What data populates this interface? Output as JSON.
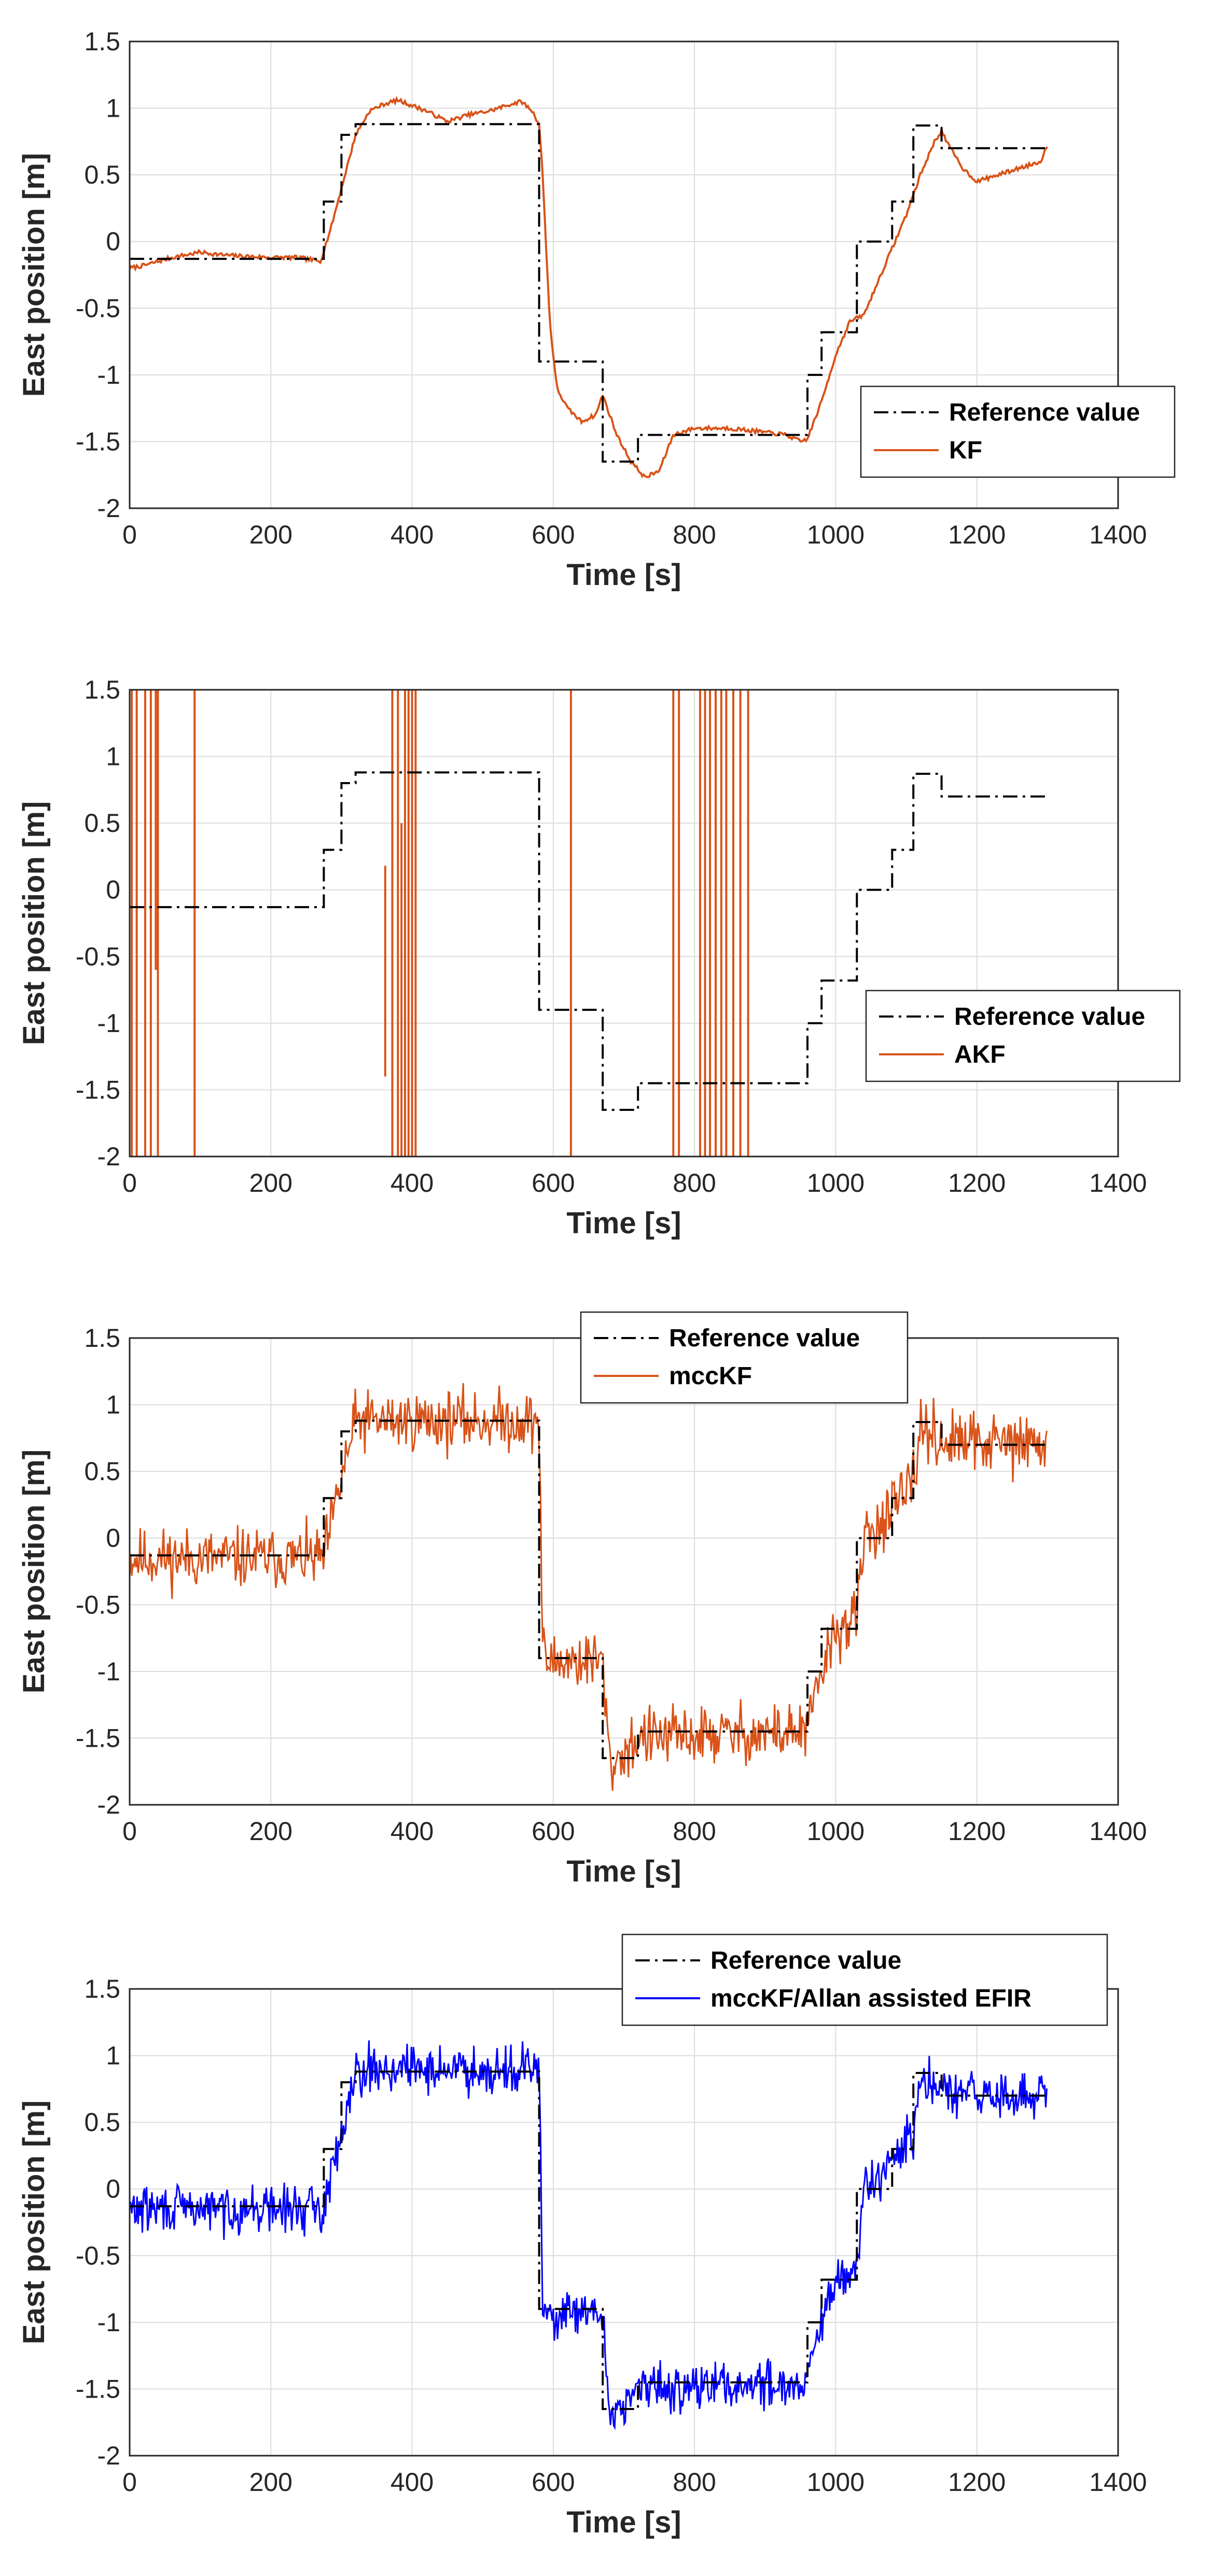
{
  "chart_data": [
    {
      "type": "line",
      "xlabel": "Time [s]",
      "ylabel": "East position [m]",
      "xlim": [
        0,
        1400
      ],
      "ylim": [
        -2,
        1.5
      ],
      "xticks": [
        "0",
        "200",
        "400",
        "600",
        "800",
        "1000",
        "1200",
        "1400"
      ],
      "yticks": [
        "-2",
        "-1.5",
        "-1",
        "-0.5",
        "0",
        "0.5",
        "1",
        "1.5"
      ],
      "grid": true,
      "legend_position": "lower-right",
      "reference": {
        "name": "Reference value",
        "color": "#000000",
        "x": [
          0,
          275,
          275,
          300,
          300,
          320,
          320,
          580,
          580,
          670,
          670,
          720,
          720,
          960,
          960,
          980,
          980,
          1000,
          1000,
          1030,
          1030,
          1040,
          1040,
          1080,
          1080,
          1110,
          1110,
          1150,
          1150,
          1300
        ],
        "y": [
          -0.13,
          -0.13,
          0.3,
          0.3,
          0.8,
          0.8,
          0.88,
          0.88,
          -0.9,
          -0.9,
          -1.65,
          -1.65,
          -1.45,
          -1.45,
          -1.0,
          -1.0,
          -0.68,
          -0.68,
          -0.68,
          -0.68,
          0.0,
          0.0,
          0.0,
          0.0,
          0.3,
          0.3,
          0.87,
          0.87,
          0.7,
          0.7
        ]
      },
      "estimate": {
        "name": "KF",
        "color": "#D95319",
        "x": [
          0,
          20,
          40,
          60,
          80,
          100,
          130,
          160,
          200,
          240,
          270,
          285,
          300,
          320,
          340,
          360,
          380,
          400,
          420,
          450,
          480,
          510,
          540,
          555,
          570,
          580,
          585,
          595,
          605,
          620,
          640,
          660,
          670,
          690,
          710,
          730,
          750,
          770,
          800,
          850,
          900,
          930,
          950,
          960,
          980,
          1000,
          1020,
          1040,
          1060,
          1080,
          1100,
          1120,
          1140,
          1150,
          1160,
          1180,
          1200,
          1230,
          1260,
          1290,
          1300
        ],
        "y": [
          -0.2,
          -0.18,
          -0.15,
          -0.12,
          -0.1,
          -0.08,
          -0.1,
          -0.11,
          -0.12,
          -0.12,
          -0.15,
          0.1,
          0.4,
          0.8,
          0.98,
          1.03,
          1.06,
          1.02,
          0.98,
          0.9,
          0.95,
          0.98,
          1.03,
          1.05,
          0.98,
          0.88,
          0.5,
          -0.6,
          -1.1,
          -1.25,
          -1.35,
          -1.3,
          -1.15,
          -1.45,
          -1.65,
          -1.77,
          -1.72,
          -1.45,
          -1.4,
          -1.4,
          -1.43,
          -1.45,
          -1.5,
          -1.48,
          -1.2,
          -0.85,
          -0.6,
          -0.55,
          -0.3,
          -0.05,
          0.2,
          0.5,
          0.75,
          0.83,
          0.72,
          0.55,
          0.45,
          0.5,
          0.55,
          0.6,
          0.72
        ]
      }
    },
    {
      "type": "line",
      "xlabel": "Time [s]",
      "ylabel": "East position [m]",
      "xlim": [
        0,
        1400
      ],
      "ylim": [
        -2,
        1.5
      ],
      "xticks": [
        "0",
        "200",
        "400",
        "600",
        "800",
        "1000",
        "1200",
        "1400"
      ],
      "yticks": [
        "-2",
        "-1.5",
        "-1",
        "-0.5",
        "0",
        "0.5",
        "1",
        "1.5"
      ],
      "grid": true,
      "legend_position": "lower-right",
      "reference": {
        "name": "Reference value",
        "color": "#000000",
        "x": [
          0,
          275,
          275,
          300,
          300,
          320,
          320,
          580,
          580,
          670,
          670,
          720,
          720,
          960,
          960,
          980,
          980,
          1000,
          1000,
          1030,
          1030,
          1040,
          1040,
          1080,
          1080,
          1110,
          1110,
          1150,
          1150,
          1300
        ],
        "y": [
          -0.13,
          -0.13,
          0.3,
          0.3,
          0.8,
          0.8,
          0.88,
          0.88,
          -0.9,
          -0.9,
          -1.65,
          -1.65,
          -1.45,
          -1.45,
          -1.0,
          -1.0,
          -0.68,
          -0.68,
          -0.68,
          -0.68,
          0.0,
          0.0,
          0.0,
          0.0,
          0.3,
          0.3,
          0.87,
          0.87,
          0.7,
          0.7
        ]
      },
      "estimate": {
        "name": "AKF",
        "color": "#D95319",
        "spikes_x": [
          3,
          10,
          22,
          30,
          37,
          40,
          92,
          355,
          362,
          372,
          380,
          385,
          390,
          395,
          400,
          405,
          625,
          770,
          778,
          808,
          815,
          822,
          830,
          838,
          845,
          855,
          865,
          876
        ],
        "spikes_low": [
          -2,
          -2,
          -2,
          -2,
          -0.6,
          -2,
          -2,
          -2,
          0.18,
          -2,
          -2,
          -2,
          -2,
          -2,
          -2,
          -2,
          -2,
          -2,
          -2,
          -2,
          -2,
          -2,
          -2,
          -2,
          -2,
          -2,
          -2,
          -2
        ],
        "spikes_high": [
          1.5,
          1.5,
          1.5,
          1.5,
          1.5,
          1.5,
          1.5,
          -2,
          -1.4,
          1.5,
          1.5,
          0.5,
          1.5,
          1.5,
          1.5,
          1.5,
          1.5,
          1.5,
          1.5,
          1.5,
          1.5,
          1.5,
          1.5,
          1.5,
          1.5,
          1.5,
          1.5,
          1.5
        ]
      }
    },
    {
      "type": "line",
      "xlabel": "Time [s]",
      "ylabel": "East position [m]",
      "xlim": [
        0,
        1400
      ],
      "ylim": [
        -2,
        1.5
      ],
      "xticks": [
        "0",
        "200",
        "400",
        "600",
        "800",
        "1000",
        "1200",
        "1400"
      ],
      "yticks": [
        "-2",
        "-1.5",
        "-1",
        "-0.5",
        "0",
        "0.5",
        "1",
        "1.5"
      ],
      "grid": true,
      "legend_position": "top-center",
      "reference": {
        "name": "Reference value",
        "color": "#000000",
        "x": [
          0,
          275,
          275,
          300,
          300,
          320,
          320,
          580,
          580,
          670,
          670,
          720,
          720,
          960,
          960,
          980,
          980,
          1000,
          1000,
          1030,
          1030,
          1040,
          1040,
          1080,
          1080,
          1110,
          1110,
          1150,
          1150,
          1300
        ],
        "y": [
          -0.13,
          -0.13,
          0.3,
          0.3,
          0.8,
          0.8,
          0.88,
          0.88,
          -0.9,
          -0.9,
          -1.65,
          -1.65,
          -1.45,
          -1.45,
          -1.0,
          -1.0,
          -0.68,
          -0.68,
          -0.68,
          -0.68,
          0.0,
          0.0,
          0.0,
          0.0,
          0.3,
          0.3,
          0.87,
          0.87,
          0.7,
          0.7
        ]
      },
      "estimate": {
        "name": "mccKF",
        "color": "#D95319",
        "noise_amplitude": 0.14,
        "noise_seed": 11,
        "x": [
          0,
          275,
          290,
          300,
          320,
          580,
          585,
          590,
          670,
          680,
          720,
          960,
          980,
          1000,
          1030,
          1040,
          1080,
          1110,
          1120,
          1150,
          1300
        ],
        "y": [
          -0.15,
          -0.15,
          0.2,
          0.45,
          0.88,
          0.88,
          -0.85,
          -0.92,
          -0.92,
          -1.72,
          -1.5,
          -1.45,
          -1.0,
          -0.7,
          -0.6,
          0.0,
          0.2,
          0.4,
          0.85,
          0.72,
          0.7
        ]
      }
    },
    {
      "type": "line",
      "xlabel": "Time [s]",
      "ylabel": "East position [m]",
      "xlim": [
        0,
        1400
      ],
      "ylim": [
        -2,
        1.5
      ],
      "xticks": [
        "0",
        "200",
        "400",
        "600",
        "800",
        "1000",
        "1200",
        "1400"
      ],
      "yticks": [
        "-2",
        "-1.5",
        "-1",
        "-0.5",
        "0",
        "0.5",
        "1",
        "1.5"
      ],
      "grid": true,
      "legend_position": "top-right",
      "reference": {
        "name": "Reference value",
        "color": "#000000",
        "x": [
          0,
          275,
          275,
          300,
          300,
          320,
          320,
          580,
          580,
          670,
          670,
          720,
          720,
          960,
          960,
          980,
          980,
          1000,
          1000,
          1030,
          1030,
          1040,
          1040,
          1080,
          1080,
          1110,
          1110,
          1150,
          1150,
          1300
        ],
        "y": [
          -0.13,
          -0.13,
          0.3,
          0.3,
          0.8,
          0.8,
          0.88,
          0.88,
          -0.9,
          -0.9,
          -1.65,
          -1.65,
          -1.45,
          -1.45,
          -1.0,
          -1.0,
          -0.68,
          -0.68,
          -0.68,
          -0.68,
          0.0,
          0.0,
          0.0,
          0.0,
          0.3,
          0.3,
          0.87,
          0.87,
          0.7,
          0.7
        ]
      },
      "estimate": {
        "name": "mccKF/Allan assisted EFIR",
        "color": "#0000FF",
        "noise_amplitude": 0.11,
        "noise_seed": 29,
        "x": [
          0,
          275,
          290,
          300,
          320,
          580,
          585,
          590,
          670,
          680,
          720,
          960,
          980,
          1000,
          1030,
          1040,
          1080,
          1110,
          1120,
          1150,
          1300
        ],
        "y": [
          -0.15,
          -0.15,
          0.2,
          0.45,
          0.9,
          0.9,
          -0.85,
          -0.95,
          -0.95,
          -1.7,
          -1.5,
          -1.45,
          -1.0,
          -0.72,
          -0.6,
          0.0,
          0.2,
          0.4,
          0.82,
          0.72,
          0.68
        ]
      }
    }
  ]
}
